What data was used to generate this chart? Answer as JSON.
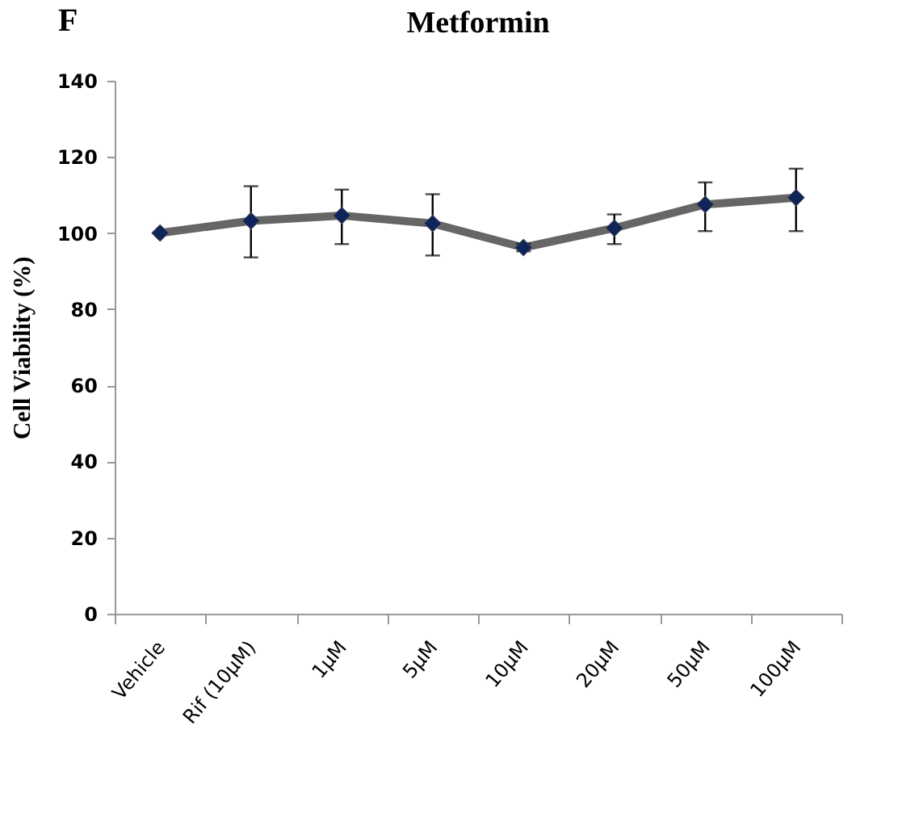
{
  "chart_data": {
    "type": "line",
    "title": "Metformin",
    "ylabel": "Cell  Viability  (%)",
    "annotations": [
      "F"
    ],
    "categories": [
      "Vehicle",
      "Rif (10µM)",
      "1µM",
      "5µM",
      "10µM",
      "20µM",
      "50µM",
      "100µM"
    ],
    "series": [
      {
        "color": "#666666",
        "values": [
          100,
          103.2,
          104.6,
          102.5,
          96.2,
          101.3,
          107.5,
          109.3
        ],
        "errors": [
          null,
          [
            93.6,
            112.3
          ],
          [
            97.1,
            111.4
          ],
          [
            94.1,
            110.2
          ],
          [
            95.2,
            97.2
          ],
          [
            97.1,
            104.9
          ],
          [
            100.5,
            113.3
          ],
          [
            100.5,
            116.9
          ]
        ]
      }
    ],
    "marker": "diamond",
    "line_style": "solid",
    "ylim": [
      0,
      140
    ],
    "yticks": [
      0,
      20,
      40,
      60,
      80,
      100,
      120,
      140
    ],
    "grid": false
  }
}
